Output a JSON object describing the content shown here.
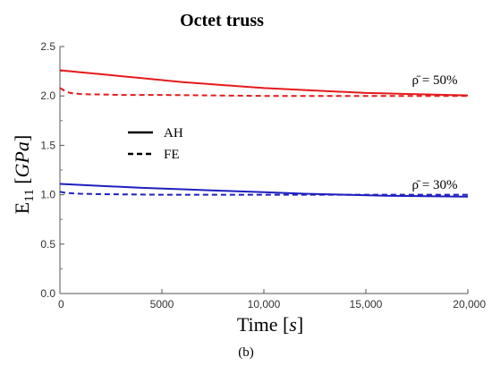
{
  "caption": "(b)",
  "chart_data": {
    "type": "line",
    "title": "Octet truss",
    "xlabel": "Time [s]",
    "ylabel": "E11 [GPa]",
    "xlim": [
      0,
      20000
    ],
    "ylim": [
      0,
      2.5
    ],
    "xticks": [
      0,
      5000,
      10000,
      15000,
      20000
    ],
    "xtick_labels": [
      "0",
      "5000",
      "10,000",
      "15,000",
      "20,000"
    ],
    "yticks": [
      0,
      0.5,
      1.0,
      1.5,
      2.0,
      2.5
    ],
    "ytick_labels": [
      "0.0",
      "0.5",
      "1.0",
      "1.5",
      "2.0",
      "2.5"
    ],
    "grid": false,
    "legend": {
      "placement": "center-left",
      "entries": [
        {
          "label": "AH",
          "style": "solid"
        },
        {
          "label": "FE",
          "style": "dashed"
        }
      ]
    },
    "annotations": [
      {
        "text": "ρ̄ = 50%",
        "x": 17500,
        "y": 2.12
      },
      {
        "text": "ρ̄ = 30%",
        "x": 17500,
        "y": 1.06
      }
    ],
    "series": [
      {
        "label": "AH, ρ̄ = 50%",
        "color": "#e41a1c",
        "style": "solid",
        "x": [
          0,
          1000,
          2000,
          3000,
          4000,
          5000,
          6000,
          7000,
          8000,
          9000,
          10000,
          11000,
          12000,
          13000,
          14000,
          15000,
          16000,
          17000,
          18000,
          19000,
          20000
        ],
        "y": [
          2.26,
          2.24,
          2.22,
          2.2,
          2.18,
          2.16,
          2.14,
          2.125,
          2.11,
          2.095,
          2.08,
          2.07,
          2.06,
          2.05,
          2.04,
          2.03,
          2.025,
          2.02,
          2.015,
          2.01,
          2.005
        ]
      },
      {
        "label": "FE, ρ̄ = 50%",
        "color": "#e41a1c",
        "style": "dashed",
        "x": [
          0,
          250,
          500,
          1000,
          1500,
          2000,
          3000,
          5000,
          10000,
          15000,
          20000
        ],
        "y": [
          2.08,
          2.05,
          2.03,
          2.02,
          2.015,
          2.015,
          2.01,
          2.01,
          2.0,
          2.0,
          2.0
        ]
      },
      {
        "label": "AH, ρ̄ = 30%",
        "color": "#1f1fbf",
        "style": "solid",
        "x": [
          0,
          2000,
          4000,
          6000,
          8000,
          10000,
          12000,
          14000,
          16000,
          18000,
          20000
        ],
        "y": [
          1.11,
          1.09,
          1.07,
          1.055,
          1.04,
          1.025,
          1.01,
          1.0,
          0.99,
          0.985,
          0.98
        ]
      },
      {
        "label": "FE, ρ̄ = 30%",
        "color": "#1f1fbf",
        "style": "dashed",
        "x": [
          0,
          250,
          500,
          1000,
          2000,
          5000,
          10000,
          15000,
          20000
        ],
        "y": [
          1.03,
          1.02,
          1.015,
          1.01,
          1.005,
          1.0,
          1.0,
          1.0,
          1.0
        ]
      }
    ]
  }
}
